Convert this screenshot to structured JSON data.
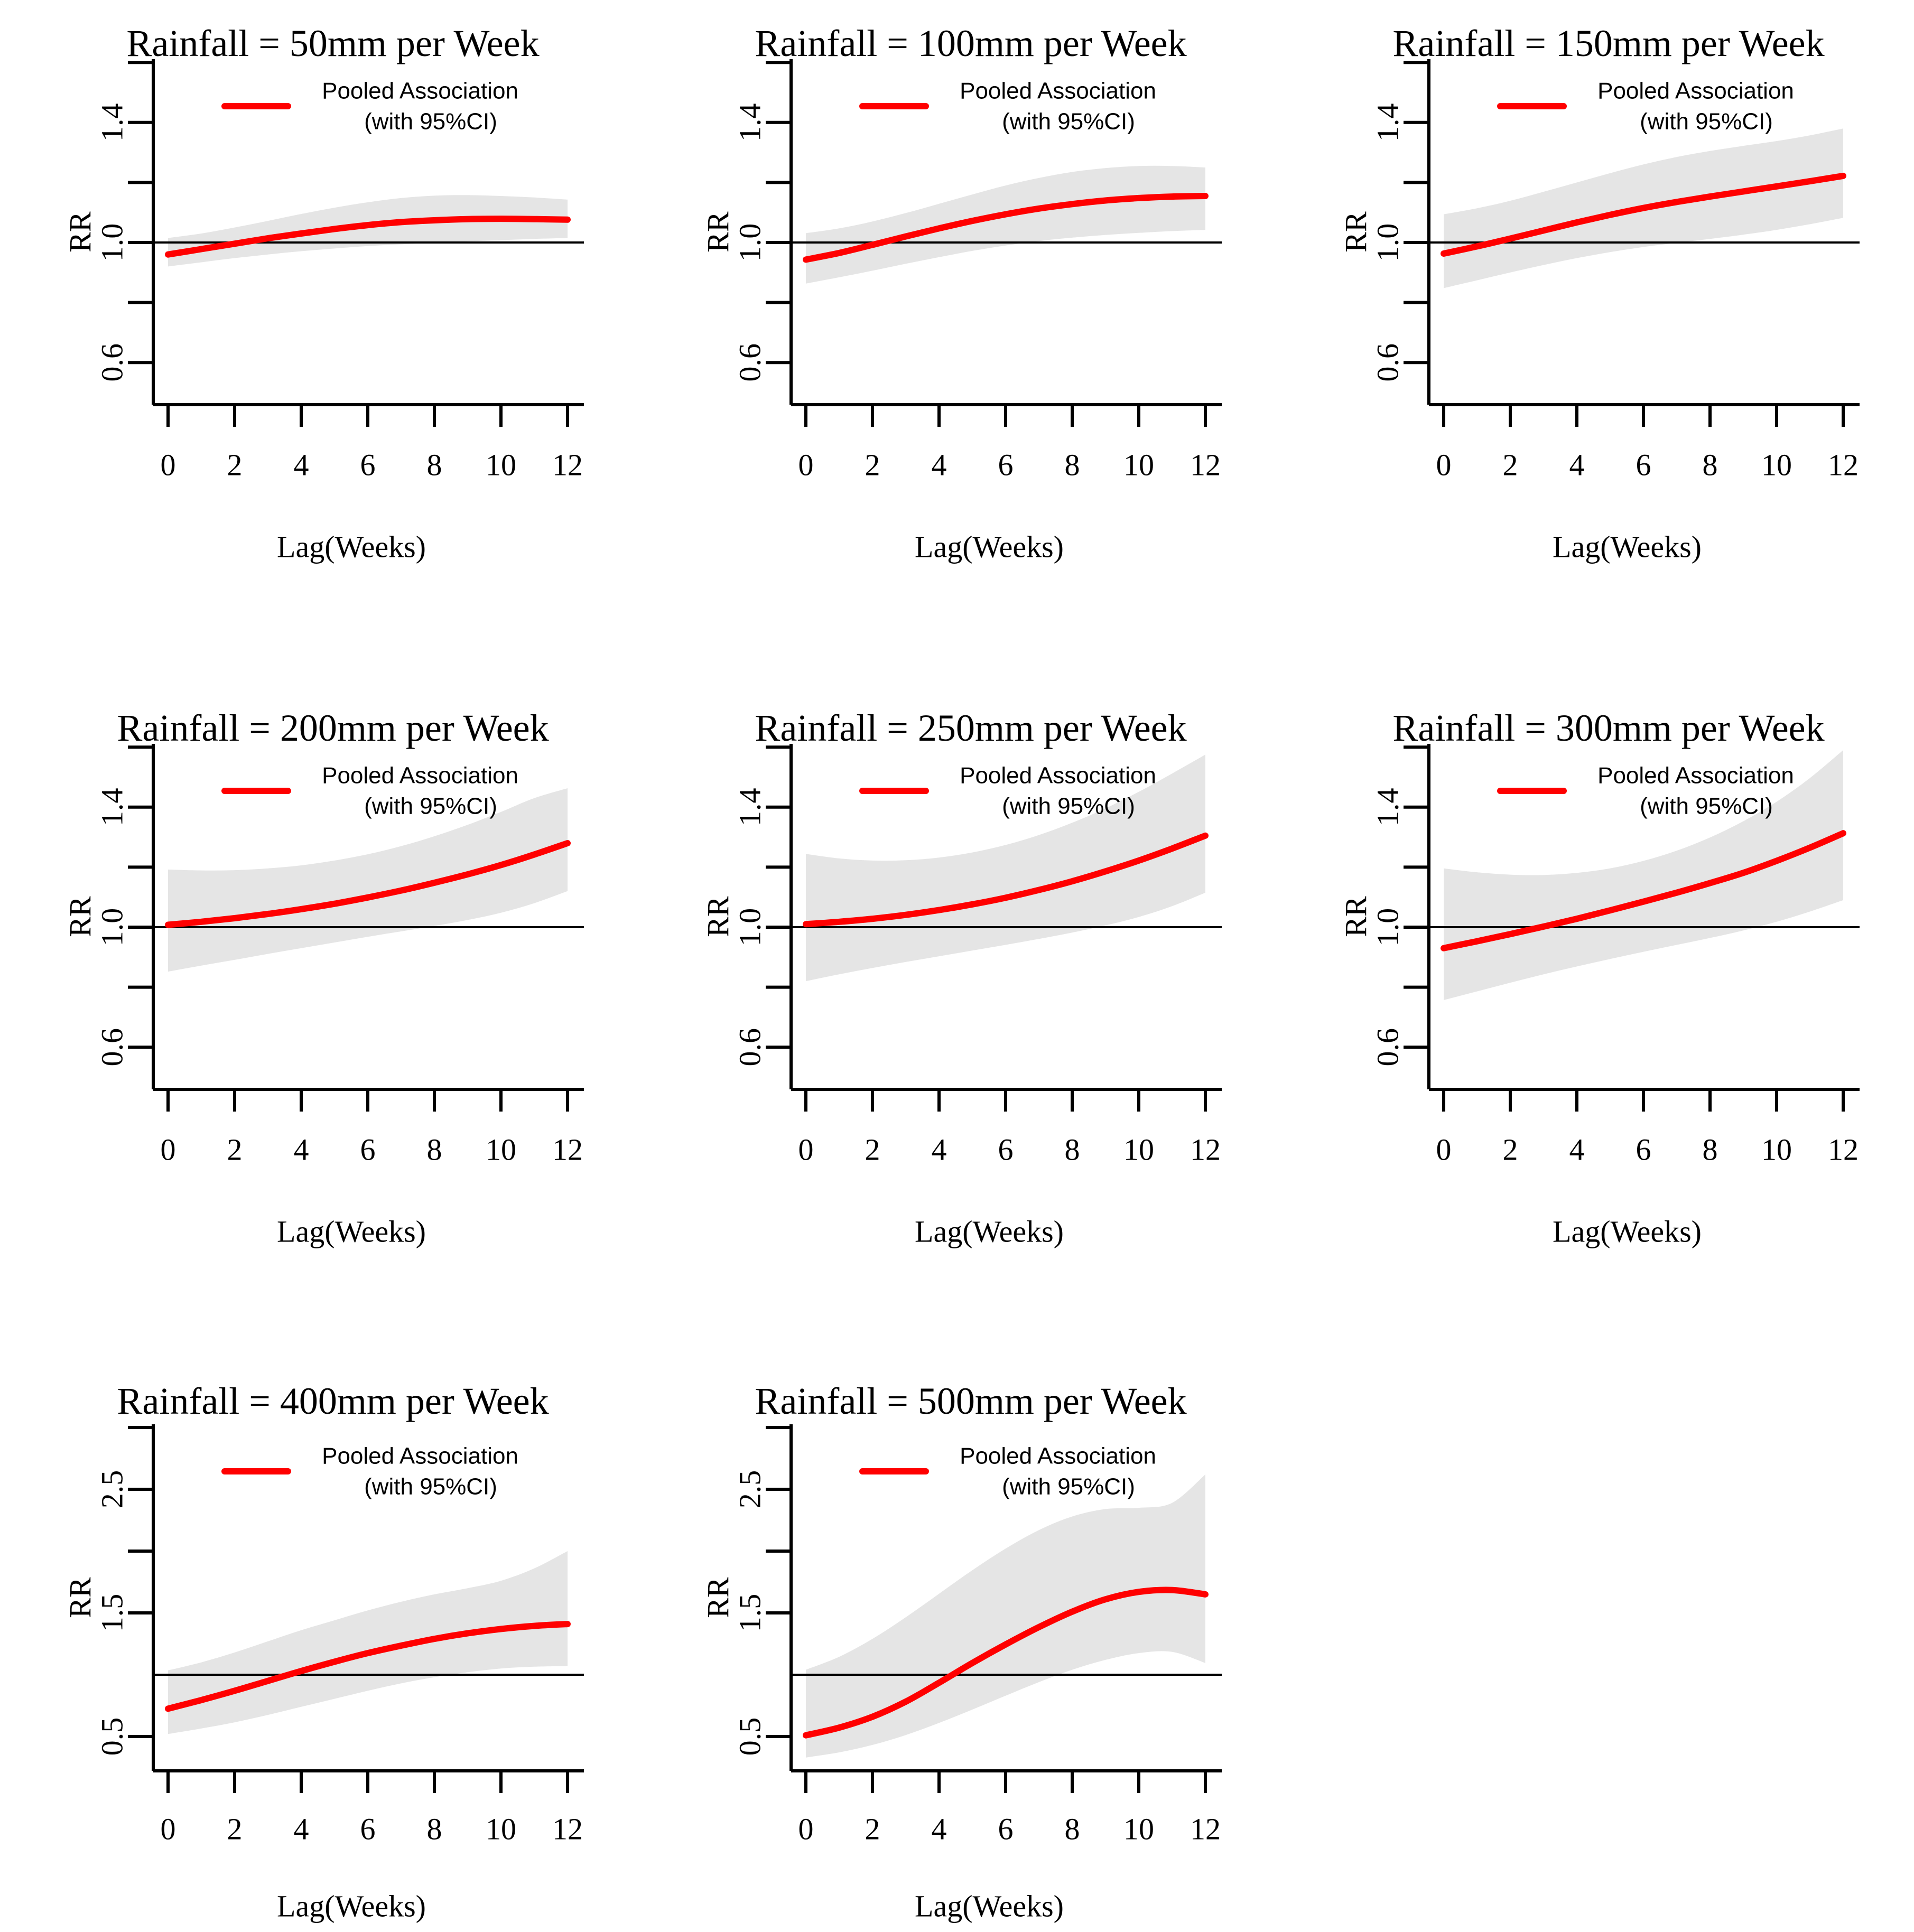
{
  "shared": {
    "ylab": "RR",
    "xlab": "Lag(Weeks)",
    "x_tick_labels": [
      "0",
      "2",
      "4",
      "6",
      "8",
      "10",
      "12"
    ],
    "legend": {
      "line1": "Pooled Association",
      "line2": "(with 95%CI)"
    },
    "reference_rr": 1.0,
    "colors": {
      "curve": "#FF0000",
      "band": "#E5E5E5",
      "axis": "#000000",
      "background": "#FFFFFF"
    }
  },
  "chart_data": [
    {
      "type": "line",
      "grid": {
        "row": 0,
        "col": 0
      },
      "title": "Rainfall = 50mm per Week",
      "xlabel": "Lag(Weeks)",
      "ylabel": "RR",
      "x": [
        0,
        1,
        2,
        3,
        4,
        5,
        6,
        7,
        8,
        9,
        10,
        11,
        12
      ],
      "ylim": [
        0.46,
        1.62
      ],
      "yticks": [
        0.6,
        0.8,
        1.0,
        1.2,
        1.4,
        1.6
      ],
      "ytick_labels": [
        "1.4",
        "1.0",
        "0.6"
      ],
      "ytick_label_values": [
        1.4,
        1.0,
        0.6
      ],
      "series": [
        {
          "name": "Pooled Association",
          "values": [
            0.96,
            0.978,
            0.996,
            1.014,
            1.03,
            1.045,
            1.058,
            1.068,
            1.074,
            1.078,
            1.079,
            1.078,
            1.076
          ]
        },
        {
          "name": "95%CI lower",
          "values": [
            0.92,
            0.934,
            0.948,
            0.96,
            0.971,
            0.98,
            0.988,
            0.994,
            0.999,
            1.004,
            1.008,
            1.012,
            1.015
          ]
        },
        {
          "name": "95%CI upper",
          "values": [
            1.015,
            1.03,
            1.05,
            1.072,
            1.095,
            1.116,
            1.134,
            1.148,
            1.156,
            1.158,
            1.155,
            1.15,
            1.143
          ]
        }
      ]
    },
    {
      "type": "line",
      "grid": {
        "row": 0,
        "col": 1
      },
      "title": "Rainfall = 100mm per Week",
      "xlabel": "Lag(Weeks)",
      "ylabel": "RR",
      "x": [
        0,
        1,
        2,
        3,
        4,
        5,
        6,
        7,
        8,
        9,
        10,
        11,
        12
      ],
      "ylim": [
        0.46,
        1.62
      ],
      "yticks": [
        0.6,
        0.8,
        1.0,
        1.2,
        1.4,
        1.6
      ],
      "ytick_labels": [
        "1.4",
        "1.0",
        "0.6"
      ],
      "ytick_label_values": [
        1.4,
        1.0,
        0.6
      ],
      "series": [
        {
          "name": "Pooled Association",
          "values": [
            0.943,
            0.965,
            0.992,
            1.02,
            1.047,
            1.072,
            1.094,
            1.113,
            1.128,
            1.14,
            1.148,
            1.153,
            1.155
          ]
        },
        {
          "name": "95%CI lower",
          "values": [
            0.863,
            0.884,
            0.906,
            0.929,
            0.951,
            0.972,
            0.99,
            1.005,
            1.016,
            1.025,
            1.032,
            1.038,
            1.042
          ]
        },
        {
          "name": "95%CI upper",
          "values": [
            1.031,
            1.047,
            1.07,
            1.098,
            1.129,
            1.16,
            1.19,
            1.215,
            1.235,
            1.248,
            1.255,
            1.255,
            1.25
          ]
        }
      ]
    },
    {
      "type": "line",
      "grid": {
        "row": 0,
        "col": 2
      },
      "title": "Rainfall = 150mm per Week",
      "xlabel": "Lag(Weeks)",
      "ylabel": "RR",
      "x": [
        0,
        1,
        2,
        3,
        4,
        5,
        6,
        7,
        8,
        9,
        10,
        11,
        12
      ],
      "ylim": [
        0.46,
        1.62
      ],
      "yticks": [
        0.6,
        0.8,
        1.0,
        1.2,
        1.4,
        1.6
      ],
      "ytick_labels": [
        "1.4",
        "1.0",
        "0.6"
      ],
      "ytick_label_values": [
        1.4,
        1.0,
        0.6
      ],
      "series": [
        {
          "name": "Pooled Association",
          "values": [
            0.963,
            0.987,
            1.013,
            1.04,
            1.067,
            1.092,
            1.115,
            1.135,
            1.153,
            1.17,
            1.187,
            1.204,
            1.222
          ]
        },
        {
          "name": "95%CI lower",
          "values": [
            0.848,
            0.874,
            0.9,
            0.925,
            0.948,
            0.968,
            0.985,
            0.999,
            1.012,
            1.026,
            1.042,
            1.061,
            1.082
          ]
        },
        {
          "name": "95%CI upper",
          "values": [
            1.094,
            1.114,
            1.139,
            1.169,
            1.2,
            1.231,
            1.26,
            1.285,
            1.305,
            1.322,
            1.338,
            1.357,
            1.38
          ]
        }
      ]
    },
    {
      "type": "line",
      "grid": {
        "row": 1,
        "col": 0
      },
      "title": "Rainfall = 200mm per Week",
      "xlabel": "Lag(Weeks)",
      "ylabel": "RR",
      "x": [
        0,
        1,
        2,
        3,
        4,
        5,
        6,
        7,
        8,
        9,
        10,
        11,
        12
      ],
      "ylim": [
        0.46,
        1.62
      ],
      "yticks": [
        0.6,
        0.8,
        1.0,
        1.2,
        1.4,
        1.6
      ],
      "ytick_labels": [
        "1.4",
        "1.0",
        "0.6"
      ],
      "ytick_label_values": [
        1.4,
        1.0,
        0.6
      ],
      "series": [
        {
          "name": "Pooled Association",
          "values": [
            1.008,
            1.018,
            1.03,
            1.044,
            1.06,
            1.078,
            1.099,
            1.122,
            1.148,
            1.176,
            1.207,
            1.242,
            1.28
          ]
        },
        {
          "name": "95%CI lower",
          "values": [
            0.852,
            0.872,
            0.891,
            0.911,
            0.93,
            0.949,
            0.968,
            0.986,
            1.004,
            1.024,
            1.048,
            1.08,
            1.12
          ]
        },
        {
          "name": "95%CI upper",
          "values": [
            1.192,
            1.189,
            1.19,
            1.196,
            1.206,
            1.222,
            1.243,
            1.27,
            1.303,
            1.341,
            1.384,
            1.43,
            1.463
          ]
        }
      ]
    },
    {
      "type": "line",
      "grid": {
        "row": 1,
        "col": 1
      },
      "title": "Rainfall = 250mm per Week",
      "xlabel": "Lag(Weeks)",
      "ylabel": "RR",
      "x": [
        0,
        1,
        2,
        3,
        4,
        5,
        6,
        7,
        8,
        9,
        10,
        11,
        12
      ],
      "ylim": [
        0.46,
        1.62
      ],
      "yticks": [
        0.6,
        0.8,
        1.0,
        1.2,
        1.4,
        1.6
      ],
      "ytick_labels": [
        "1.4",
        "1.0",
        "0.6"
      ],
      "ytick_label_values": [
        1.4,
        1.0,
        0.6
      ],
      "series": [
        {
          "name": "Pooled Association",
          "values": [
            1.01,
            1.018,
            1.028,
            1.041,
            1.057,
            1.076,
            1.098,
            1.124,
            1.153,
            1.186,
            1.222,
            1.262,
            1.305
          ]
        },
        {
          "name": "95%CI lower",
          "values": [
            0.82,
            0.843,
            0.864,
            0.884,
            0.903,
            0.922,
            0.941,
            0.961,
            0.982,
            1.006,
            1.034,
            1.07,
            1.115
          ]
        },
        {
          "name": "95%CI upper",
          "values": [
            1.244,
            1.229,
            1.222,
            1.223,
            1.232,
            1.249,
            1.274,
            1.307,
            1.348,
            1.396,
            1.451,
            1.512,
            1.575
          ]
        }
      ]
    },
    {
      "type": "line",
      "grid": {
        "row": 1,
        "col": 2
      },
      "title": "Rainfall = 300mm per Week",
      "xlabel": "Lag(Weeks)",
      "ylabel": "RR",
      "x": [
        0,
        1,
        2,
        3,
        4,
        5,
        6,
        7,
        8,
        9,
        10,
        11,
        12
      ],
      "ylim": [
        0.46,
        1.62
      ],
      "yticks": [
        0.6,
        0.8,
        1.0,
        1.2,
        1.4,
        1.6
      ],
      "ytick_labels": [
        "1.4",
        "1.0",
        "0.6"
      ],
      "ytick_label_values": [
        1.4,
        1.0,
        0.6
      ],
      "series": [
        {
          "name": "Pooled Association",
          "values": [
            0.93,
            0.953,
            0.977,
            1.002,
            1.028,
            1.056,
            1.085,
            1.115,
            1.147,
            1.181,
            1.221,
            1.265,
            1.313
          ]
        },
        {
          "name": "95%CI lower",
          "values": [
            0.757,
            0.786,
            0.815,
            0.843,
            0.869,
            0.894,
            0.918,
            0.941,
            0.964,
            0.989,
            1.018,
            1.052,
            1.09
          ]
        },
        {
          "name": "95%CI upper",
          "values": [
            1.196,
            1.183,
            1.175,
            1.174,
            1.181,
            1.196,
            1.221,
            1.255,
            1.299,
            1.353,
            1.418,
            1.497,
            1.59
          ]
        }
      ]
    },
    {
      "type": "line",
      "grid": {
        "row": 2,
        "col": 0
      },
      "title": "Rainfall = 400mm per Week",
      "xlabel": "Lag(Weeks)",
      "ylabel": "RR",
      "x": [
        0,
        1,
        2,
        3,
        4,
        5,
        6,
        7,
        8,
        9,
        10,
        11,
        12
      ],
      "ylim": [
        0.22,
        3.03
      ],
      "yticks": [
        0.5,
        1.5,
        2.0,
        2.5,
        3.0
      ],
      "ytick_labels": [
        "2.5",
        "1.5",
        "0.5"
      ],
      "ytick_label_values": [
        2.5,
        1.5,
        0.5
      ],
      "series": [
        {
          "name": "Pooled Association",
          "values": [
            0.725,
            0.795,
            0.87,
            0.95,
            1.03,
            1.105,
            1.175,
            1.235,
            1.29,
            1.335,
            1.37,
            1.395,
            1.41
          ]
        },
        {
          "name": "95%CI lower",
          "values": [
            0.52,
            0.565,
            0.615,
            0.675,
            0.74,
            0.805,
            0.87,
            0.93,
            0.98,
            1.02,
            1.05,
            1.065,
            1.07
          ]
        },
        {
          "name": "95%CI upper",
          "values": [
            1.035,
            1.1,
            1.18,
            1.27,
            1.36,
            1.44,
            1.52,
            1.59,
            1.65,
            1.7,
            1.76,
            1.86,
            2.0
          ]
        }
      ]
    },
    {
      "type": "line",
      "grid": {
        "row": 2,
        "col": 1
      },
      "title": "Rainfall = 500mm per Week",
      "xlabel": "Lag(Weeks)",
      "ylabel": "RR",
      "x": [
        0,
        1,
        2,
        3,
        4,
        5,
        6,
        7,
        8,
        9,
        10,
        11,
        12
      ],
      "ylim": [
        0.22,
        3.03
      ],
      "yticks": [
        0.5,
        1.5,
        2.0,
        2.5,
        3.0
      ],
      "ytick_labels": [
        "2.5",
        "1.5",
        "0.5"
      ],
      "ytick_label_values": [
        2.5,
        1.5,
        0.5
      ],
      "series": [
        {
          "name": "Pooled Association",
          "values": [
            0.51,
            0.572,
            0.66,
            0.782,
            0.935,
            1.095,
            1.245,
            1.385,
            1.51,
            1.61,
            1.67,
            1.685,
            1.65
          ]
        },
        {
          "name": "95%CI lower",
          "values": [
            0.33,
            0.372,
            0.432,
            0.512,
            0.61,
            0.718,
            0.83,
            0.94,
            1.04,
            1.12,
            1.175,
            1.185,
            1.095
          ]
        },
        {
          "name": "95%CI upper",
          "values": [
            1.04,
            1.145,
            1.29,
            1.465,
            1.655,
            1.845,
            2.02,
            2.17,
            2.28,
            2.34,
            2.35,
            2.39,
            2.62
          ]
        }
      ]
    }
  ]
}
